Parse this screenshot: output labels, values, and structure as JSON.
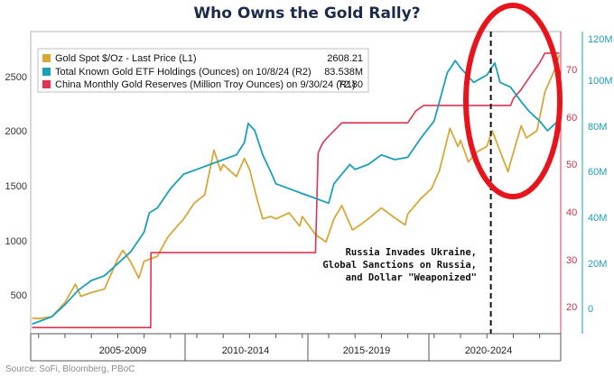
{
  "chart_data": {
    "type": "line",
    "title": "Who Owns the Gold Rally?",
    "source": "Source: SoFi, Bloomberg, PBoC",
    "x_categories": [
      "2005-2009",
      "2010-2014",
      "2015-2019",
      "2020-2024"
    ],
    "x_range": [
      2004.7,
      2024.8
    ],
    "axes": {
      "left": {
        "ticks": [
          500,
          1000,
          1500,
          2000,
          2500
        ],
        "range": [
          300,
          2800
        ]
      },
      "right_inner": {
        "ticks": [
          20,
          30,
          40,
          50,
          60,
          70
        ],
        "range": [
          18.1,
          77
        ]
      },
      "right_outer": {
        "ticks": [
          "0",
          "20M",
          "40M",
          "60M",
          "80M",
          "100M",
          "120M"
        ],
        "tick_values": [
          0,
          20,
          40,
          60,
          80,
          100,
          120
        ],
        "range": [
          -4,
          121
        ]
      }
    },
    "legend_position": "top-left",
    "series": [
      {
        "name": "Gold Spot $/Oz - Last Price (L1)",
        "last_value": "2608.21",
        "color": "#d6a83a",
        "axis": "left",
        "x": [
          2004.75,
          2005.0,
          2005.5,
          2006.0,
          2006.4,
          2006.6,
          2007.0,
          2007.5,
          2008.0,
          2008.2,
          2008.5,
          2008.8,
          2009.0,
          2009.5,
          2009.9,
          2010.5,
          2010.9,
          2011.3,
          2011.65,
          2011.9,
          2012.0,
          2012.5,
          2012.8,
          2013.0,
          2013.3,
          2013.5,
          2013.8,
          2014.0,
          2014.5,
          2014.9,
          2015.0,
          2015.5,
          2015.9,
          2016.2,
          2016.5,
          2016.9,
          2017.0,
          2017.5,
          2018.0,
          2018.5,
          2018.9,
          2019.0,
          2019.5,
          2019.9,
          2020.2,
          2020.6,
          2020.9,
          2021.0,
          2021.3,
          2021.6,
          2022.0,
          2022.2,
          2022.8,
          2022.9,
          2023.3,
          2023.5,
          2023.9,
          2024.2,
          2024.6,
          2024.75
        ],
        "y": [
          430,
          425,
          440,
          560,
          710,
          610,
          640,
          670,
          920,
          990,
          890,
          760,
          900,
          940,
          1100,
          1250,
          1380,
          1450,
          1820,
          1650,
          1700,
          1600,
          1750,
          1660,
          1400,
          1250,
          1270,
          1250,
          1300,
          1190,
          1270,
          1120,
          1060,
          1250,
          1360,
          1160,
          1170,
          1250,
          1340,
          1260,
          1200,
          1290,
          1420,
          1500,
          1650,
          2000,
          1850,
          1900,
          1720,
          1800,
          1850,
          1980,
          1640,
          1720,
          2020,
          1920,
          1980,
          2300,
          2500,
          2608
        ]
      },
      {
        "name": "Total Known Gold ETF Holdings (Ounces) on 10/8/24 (R2)",
        "last_value": "83.538M",
        "color": "#1a9fb8",
        "axis": "right_outer",
        "x": [
          2004.75,
          2005.0,
          2005.5,
          2006.0,
          2006.5,
          2007.0,
          2007.5,
          2008.0,
          2008.5,
          2009.0,
          2009.2,
          2009.5,
          2010.0,
          2010.5,
          2011.0,
          2011.5,
          2012.0,
          2012.5,
          2012.8,
          2012.95,
          2013.2,
          2013.5,
          2013.8,
          2014.0,
          2014.5,
          2015.0,
          2015.5,
          2016.0,
          2016.2,
          2016.5,
          2016.8,
          2017.0,
          2017.5,
          2018.0,
          2018.5,
          2019.0,
          2019.5,
          2020.0,
          2020.5,
          2020.8,
          2021.0,
          2021.5,
          2022.0,
          2022.3,
          2022.5,
          2022.9,
          2023.3,
          2023.6,
          2024.0,
          2024.3,
          2024.6,
          2024.7
        ],
        "y": [
          0,
          1,
          3,
          8,
          14,
          18,
          20,
          25,
          30,
          38,
          46,
          48,
          56,
          62,
          64,
          66,
          68,
          70,
          75,
          83,
          80,
          70,
          63,
          58,
          56,
          54,
          52,
          50,
          58,
          62,
          66,
          64,
          66,
          70,
          68,
          69,
          77,
          84,
          104,
          109,
          106,
          100,
          103,
          108,
          100,
          98,
          92,
          88,
          84,
          80,
          83,
          84
        ]
      },
      {
        "name": "China Monthly Gold Reserves (Million Troy Ounces) on 9/30/24 (R1)",
        "last_value": "72.80",
        "color": "#e03352",
        "axis": "right_inner",
        "x": [
          2004.75,
          2009.25,
          2009.26,
          2015.5,
          2015.6,
          2015.7,
          2015.8,
          2016.0,
          2016.5,
          2019.0,
          2019.3,
          2019.6,
          2020.0,
          2022.0,
          2022.9,
          2023.0,
          2023.3,
          2023.6,
          2024.0,
          2024.2,
          2024.3,
          2024.75
        ],
        "y": [
          19.3,
          19.3,
          33.9,
          33.9,
          53.3,
          54.5,
          55.5,
          56.6,
          59.2,
          59.2,
          61.5,
          62.6,
          62.6,
          62.6,
          62.6,
          63.9,
          65.7,
          68.0,
          70.9,
          72.8,
          72.8,
          72.8
        ]
      }
    ],
    "annotations": [
      "Russia Invades Ukraine,",
      "Global Sanctions on Russia,",
      "and Dollar \"Weaponized\""
    ],
    "event_line_x": 2022.15,
    "highlight_ellipse_color": "#e8141b"
  }
}
